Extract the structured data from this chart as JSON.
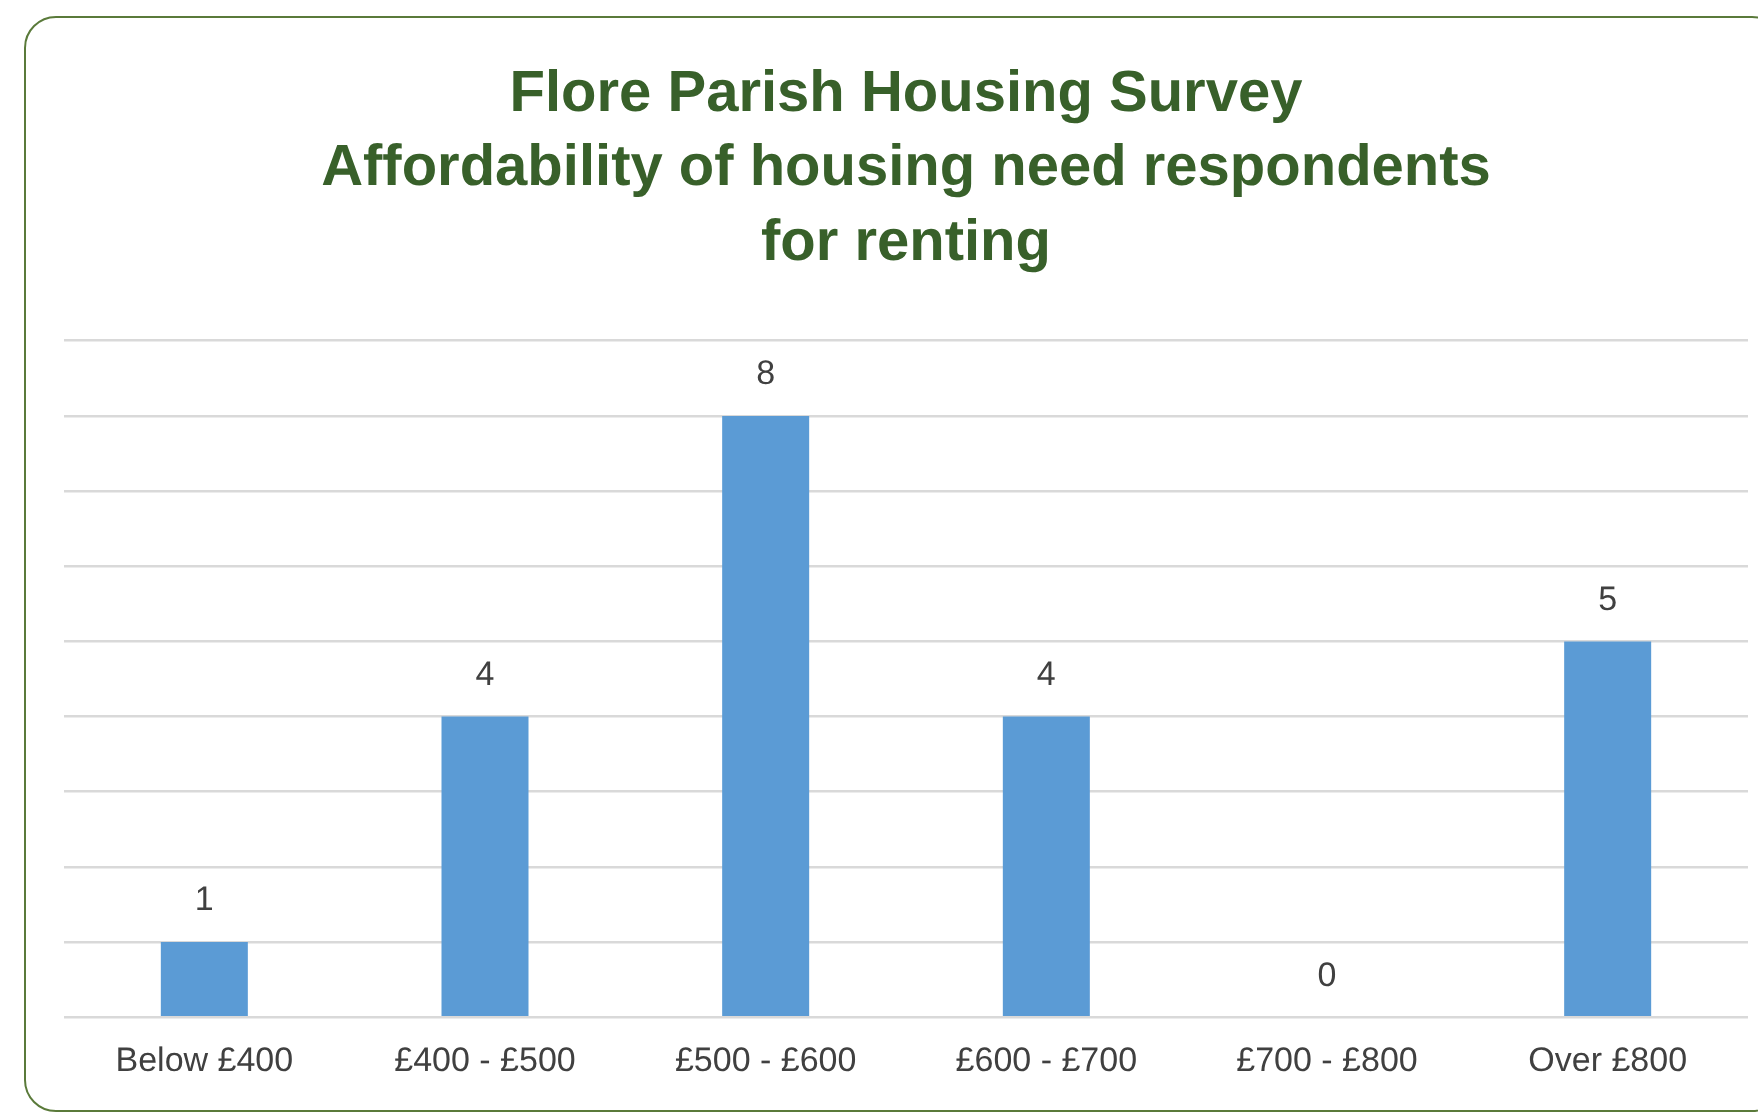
{
  "chart_data": {
    "type": "bar",
    "title": "Flore Parish Housing Survey\nAffordability of housing need respondents\nfor renting",
    "categories": [
      "Below £400",
      "£400 - £500",
      "£500 - £600",
      "£600 - £700",
      "£700 - £800",
      "Over £800"
    ],
    "values": [
      1,
      4,
      8,
      4,
      0,
      5
    ],
    "color": "#5b9bd5",
    "ylim": [
      0,
      9
    ],
    "yticks": [
      {
        "value": 0,
        "label": null
      },
      {
        "value": 1,
        "label": null
      },
      {
        "value": 2,
        "label": null
      },
      {
        "value": 3,
        "label": null
      },
      {
        "value": 4,
        "label": null
      },
      {
        "value": 5,
        "label": null
      },
      {
        "value": 6,
        "label": null
      },
      {
        "value": 7,
        "label": null
      },
      {
        "value": 8,
        "label": null
      },
      {
        "value": 9,
        "label": null
      }
    ],
    "grid": "y",
    "tick_labels": "x",
    "data_labels": true
  }
}
